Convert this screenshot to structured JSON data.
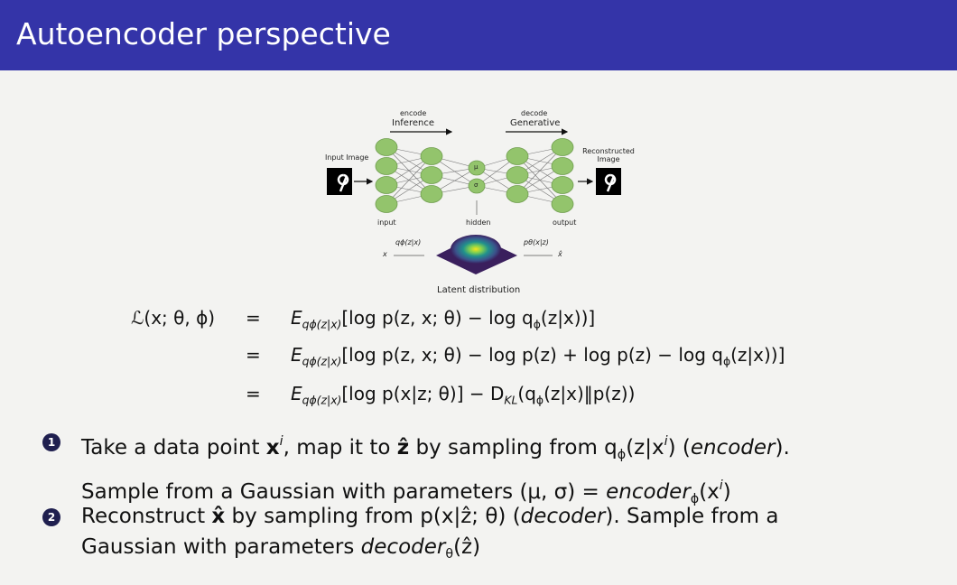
{
  "header": {
    "title": "Autoencoder perspective"
  },
  "figure": {
    "encode": "encode",
    "inference": "Inference",
    "decode": "decode",
    "generative": "Generative",
    "input_image": "Input Image",
    "reconstructed_image": "Reconstructed Image",
    "input": "input",
    "hidden": "hidden",
    "output": "output",
    "mu": "μ",
    "sigma": "σ",
    "encoder_label": "qϕ(z|x)",
    "decoder_label": "pθ(x|z)",
    "x": "x",
    "x_hat": "x̂",
    "caption": "Latent distribution"
  },
  "equations": [
    {
      "lhs": "ℒ(x; θ, ϕ)",
      "eq": "=",
      "rhs": [
        "E",
        "qϕ(z|x)",
        "[log p(z, x; θ) − log q",
        "ϕ",
        "(z|x))]"
      ]
    },
    {
      "eq": "=",
      "rhs": [
        "E",
        "qϕ(z|x)",
        "[log p(z, x; θ) − log p(z) + log p(z) − log q",
        "ϕ",
        "(z|x))]"
      ]
    },
    {
      "eq": "=",
      "rhs": [
        "E",
        "qϕ(z|x)",
        "[log p(x|z; θ)] − D",
        "KL",
        "(q",
        "ϕ",
        "(z|x)‖p(z))"
      ]
    }
  ],
  "bullets": [
    {
      "marker": "1",
      "text": [
        "Take a data point ",
        "x",
        "i",
        ", map it to ",
        "ẑ",
        " by sampling from q",
        "ϕ",
        "(z|x",
        "i",
        ") (",
        "encoder",
        ").",
        "Sample from a Gaussian with parameters (μ, σ) = ",
        "encoder",
        "ϕ",
        "(x",
        "i",
        ")"
      ]
    },
    {
      "marker": "2",
      "text": [
        "Reconstruct ",
        "x̂",
        " by sampling from p(x|ẑ; θ) (",
        "decoder",
        "). Sample from a",
        "Gaussian with parameters ",
        "decoder",
        "θ",
        "(ẑ)"
      ]
    }
  ]
}
